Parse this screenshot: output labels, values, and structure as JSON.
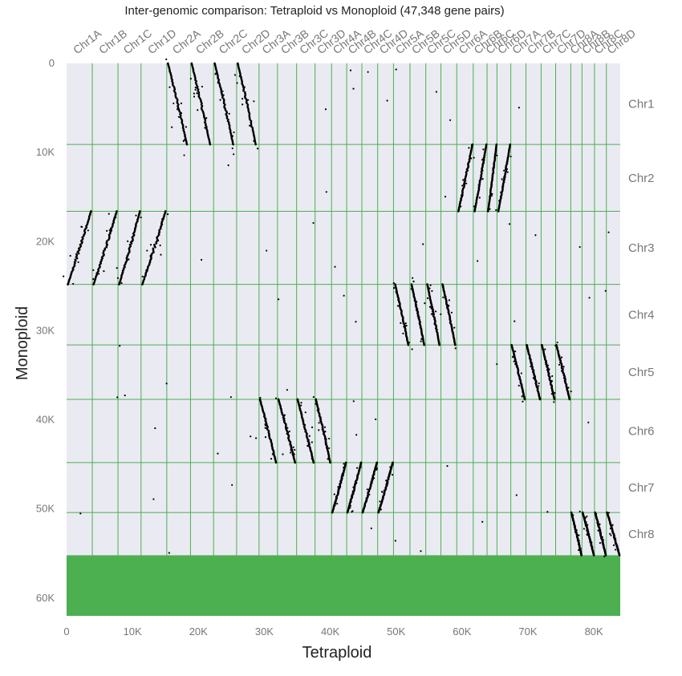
{
  "chart_data": {
    "type": "scatter",
    "title": "Inter-genomic comparison: Tetraploid vs Monoploid (47,348 gene pairs)",
    "xlabel": "Tetraploid",
    "ylabel": "Monoploid",
    "xlim": [
      0,
      84000
    ],
    "ylim": [
      0,
      62000
    ],
    "y_inverted": true,
    "x_ticks": [
      0,
      10000,
      20000,
      30000,
      40000,
      50000,
      60000,
      70000,
      80000
    ],
    "x_tick_labels": [
      "0",
      "10K",
      "20K",
      "30K",
      "40K",
      "50K",
      "60K",
      "70K",
      "80K"
    ],
    "y_ticks": [
      0,
      10000,
      20000,
      30000,
      40000,
      50000,
      60000
    ],
    "y_tick_labels": [
      "0",
      "10K",
      "20K",
      "30K",
      "40K",
      "50K",
      "60K"
    ],
    "x_chromosomes": [
      {
        "name": "Chr1A",
        "start": 0,
        "end": 3900
      },
      {
        "name": "Chr1B",
        "start": 3900,
        "end": 7800
      },
      {
        "name": "Chr1C",
        "start": 7800,
        "end": 11300
      },
      {
        "name": "Chr1D",
        "start": 11300,
        "end": 15200
      },
      {
        "name": "Chr2A",
        "start": 15200,
        "end": 18800
      },
      {
        "name": "Chr2B",
        "start": 18800,
        "end": 22300
      },
      {
        "name": "Chr2C",
        "start": 22300,
        "end": 25800
      },
      {
        "name": "Chr2D",
        "start": 25800,
        "end": 29200
      },
      {
        "name": "Chr3A",
        "start": 29200,
        "end": 32000
      },
      {
        "name": "Chr3B",
        "start": 32000,
        "end": 34900
      },
      {
        "name": "Chr3C",
        "start": 34900,
        "end": 37700
      },
      {
        "name": "Chr3D",
        "start": 37700,
        "end": 40200
      },
      {
        "name": "Chr4A",
        "start": 40200,
        "end": 42500
      },
      {
        "name": "Chr4B",
        "start": 42500,
        "end": 44800
      },
      {
        "name": "Chr4C",
        "start": 44800,
        "end": 47200
      },
      {
        "name": "Chr4D",
        "start": 47200,
        "end": 49600
      },
      {
        "name": "Chr5A",
        "start": 49600,
        "end": 52100
      },
      {
        "name": "Chr5B",
        "start": 52100,
        "end": 54500
      },
      {
        "name": "Chr5C",
        "start": 54500,
        "end": 56800
      },
      {
        "name": "Chr5D",
        "start": 56800,
        "end": 59200
      },
      {
        "name": "Chr6A",
        "start": 59200,
        "end": 61700
      },
      {
        "name": "Chr6B",
        "start": 61700,
        "end": 63800
      },
      {
        "name": "Chr6C",
        "start": 63800,
        "end": 65300
      },
      {
        "name": "Chr6D",
        "start": 65300,
        "end": 67400
      },
      {
        "name": "Chr7A",
        "start": 67400,
        "end": 69700
      },
      {
        "name": "Chr7B",
        "start": 69700,
        "end": 72000
      },
      {
        "name": "Chr7C",
        "start": 72000,
        "end": 74200
      },
      {
        "name": "Chr7D",
        "start": 74200,
        "end": 76500
      },
      {
        "name": "Chr8A",
        "start": 76500,
        "end": 78200
      },
      {
        "name": "Chr8B",
        "start": 78200,
        "end": 80100
      },
      {
        "name": "Chr8C",
        "start": 80100,
        "end": 81900
      },
      {
        "name": "Chr8D",
        "start": 81900,
        "end": 84000
      }
    ],
    "y_chromosomes": [
      {
        "name": "Chr1",
        "start": 0,
        "end": 9100
      },
      {
        "name": "Chr2",
        "start": 9100,
        "end": 16600
      },
      {
        "name": "Chr3",
        "start": 16600,
        "end": 24800
      },
      {
        "name": "Chr4",
        "start": 24800,
        "end": 31600
      },
      {
        "name": "Chr5",
        "start": 31600,
        "end": 37700
      },
      {
        "name": "Chr6",
        "start": 37700,
        "end": 44800
      },
      {
        "name": "Chr7",
        "start": 44800,
        "end": 50400
      },
      {
        "name": "Chr8",
        "start": 50400,
        "end": 55200
      }
    ],
    "filled_region": {
      "y_start": 55200,
      "y_end": 62000
    },
    "colors": {
      "panel": "#EAEAF2",
      "grid": "#4CAF50",
      "points": "#000000",
      "filled": "#4CAF50"
    },
    "synteny_blocks": [
      {
        "x_chromosomes": [
          "Chr2A",
          "Chr2B",
          "Chr2C",
          "Chr2D"
        ],
        "y_chromosome": "Chr1",
        "orientation": "forward",
        "x_fraction": [
          0.05,
          0.85
        ]
      },
      {
        "x_chromosomes": [
          "Chr6A",
          "Chr6B",
          "Chr6C",
          "Chr6D"
        ],
        "y_chromosome": "Chr2",
        "orientation": "reverse",
        "x_fraction": [
          0.1,
          0.95
        ]
      },
      {
        "x_chromosomes": [
          "Chr1A",
          "Chr1B",
          "Chr1C",
          "Chr1D"
        ],
        "y_chromosome": "Chr3",
        "orientation": "reverse",
        "x_fraction": [
          0.05,
          0.95
        ]
      },
      {
        "x_chromosomes": [
          "Chr5A",
          "Chr5B",
          "Chr5C",
          "Chr5D"
        ],
        "y_chromosome": "Chr4",
        "orientation": "forward",
        "x_fraction": [
          0.1,
          0.9
        ]
      },
      {
        "x_chromosomes": [
          "Chr7A",
          "Chr7B",
          "Chr7C",
          "Chr7D"
        ],
        "y_chromosome": "Chr5",
        "orientation": "forward",
        "x_fraction": [
          0.05,
          0.92
        ]
      },
      {
        "x_chromosomes": [
          "Chr3A",
          "Chr3B",
          "Chr3C",
          "Chr3D"
        ],
        "y_chromosome": "Chr6",
        "orientation": "forward",
        "x_fraction": [
          0.05,
          0.92
        ]
      },
      {
        "x_chromosomes": [
          "Chr4A",
          "Chr4B",
          "Chr4C",
          "Chr4D"
        ],
        "y_chromosome": "Chr7",
        "orientation": "reverse",
        "x_fraction": [
          0.05,
          0.95
        ]
      },
      {
        "x_chromosomes": [
          "Chr8A",
          "Chr8B",
          "Chr8C",
          "Chr8D"
        ],
        "y_chromosome": "Chr8",
        "orientation": "forward",
        "x_fraction": [
          0.05,
          0.95
        ]
      }
    ]
  }
}
